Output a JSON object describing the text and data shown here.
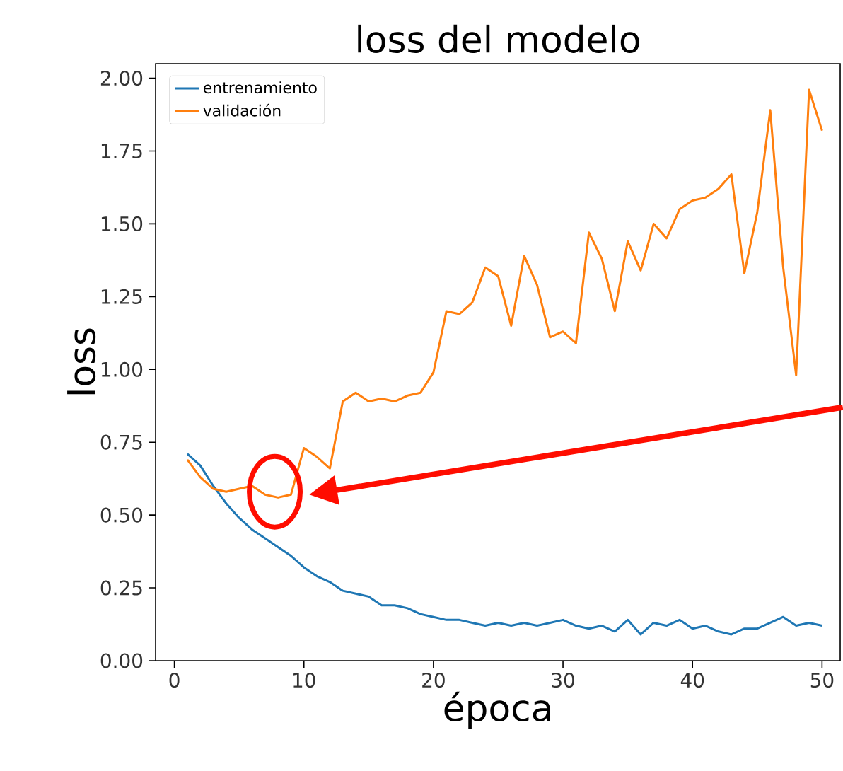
{
  "chart_data": {
    "type": "line",
    "title": "loss del modelo",
    "xlabel": "época",
    "ylabel": "loss",
    "x": [
      1,
      2,
      3,
      4,
      5,
      6,
      7,
      8,
      9,
      10,
      11,
      12,
      13,
      14,
      15,
      16,
      17,
      18,
      19,
      20,
      21,
      22,
      23,
      24,
      25,
      26,
      27,
      28,
      29,
      30,
      31,
      32,
      33,
      34,
      35,
      36,
      37,
      38,
      39,
      40,
      41,
      42,
      43,
      44,
      45,
      46,
      47,
      48,
      49,
      50
    ],
    "series": [
      {
        "name": "entrenamiento",
        "color": "#1f77b4",
        "values": [
          0.71,
          0.67,
          0.6,
          0.54,
          0.49,
          0.45,
          0.42,
          0.39,
          0.36,
          0.32,
          0.29,
          0.27,
          0.24,
          0.23,
          0.22,
          0.19,
          0.19,
          0.18,
          0.16,
          0.15,
          0.14,
          0.14,
          0.13,
          0.12,
          0.13,
          0.12,
          0.13,
          0.12,
          0.13,
          0.14,
          0.12,
          0.11,
          0.12,
          0.1,
          0.14,
          0.09,
          0.13,
          0.12,
          0.14,
          0.11,
          0.12,
          0.1,
          0.09,
          0.11,
          0.11,
          0.13,
          0.15,
          0.12,
          0.13,
          0.12
        ]
      },
      {
        "name": "validación",
        "color": "#ff7f0e",
        "values": [
          0.69,
          0.63,
          0.59,
          0.58,
          0.59,
          0.6,
          0.57,
          0.56,
          0.57,
          0.73,
          0.7,
          0.66,
          0.89,
          0.92,
          0.89,
          0.9,
          0.89,
          0.91,
          0.92,
          0.99,
          1.2,
          1.19,
          1.23,
          1.35,
          1.32,
          1.15,
          1.39,
          1.29,
          1.11,
          1.13,
          1.09,
          1.47,
          1.38,
          1.2,
          1.44,
          1.34,
          1.5,
          1.45,
          1.55,
          1.58,
          1.59,
          1.62,
          1.67,
          1.33,
          1.54,
          1.89,
          1.35,
          0.98,
          1.96,
          1.82
        ]
      }
    ],
    "xlim": [
      -1.45,
      51.4
    ],
    "ylim": [
      0,
      2.05
    ],
    "xticks": [
      0,
      10,
      20,
      30,
      40,
      50
    ],
    "yticks": [
      {
        "value": 0,
        "label": "0.00"
      },
      {
        "value": 0.25,
        "label": "0.25"
      },
      {
        "value": 0.5,
        "label": "0.50"
      },
      {
        "value": 0.75,
        "label": "0.75"
      },
      {
        "value": 1,
        "label": "1.00"
      },
      {
        "value": 1.25,
        "label": "1.25"
      },
      {
        "value": 1.5,
        "label": "1.50"
      },
      {
        "value": 1.75,
        "label": "1.75"
      },
      {
        "value": 2,
        "label": "2.00"
      }
    ],
    "grid": false,
    "legend": "top left",
    "marker": "none",
    "line_style": "solid"
  }
}
